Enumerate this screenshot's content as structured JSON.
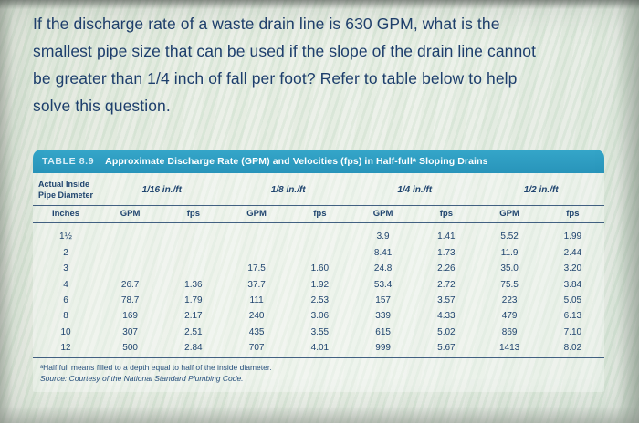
{
  "colors": {
    "header_bar_teal": "#2b9cc1",
    "question_text_navy": "#1d3e6c",
    "table_text_navy": "#20456f",
    "background_tint": "#e8ede4"
  },
  "question": {
    "lines": [
      "If the discharge rate of a waste drain line is 630 GPM, what is the",
      "smallest pipe size that can be used if the slope of the drain line cannot",
      "be greater than 1/4 inch of fall per foot? Refer to table below to help",
      "solve this question."
    ]
  },
  "table": {
    "label": "TABLE 8.9",
    "title": "Approximate Discharge Rate (GPM) and Velocities (fps) in Half-fullᵃ Sloping Drains",
    "corner_header": "Actual Inside\nPipe Diameter",
    "slope_headers": [
      "1/16 in./ft",
      "1/8 in./ft",
      "1/4 in./ft",
      "1/2 in./ft"
    ],
    "sub_headers": [
      "Inches",
      "GPM",
      "fps",
      "GPM",
      "fps",
      "GPM",
      "fps",
      "GPM",
      "fps"
    ],
    "rows": [
      [
        "1½",
        "",
        "",
        "",
        "",
        "3.9",
        "1.41",
        "5.52",
        "1.99"
      ],
      [
        "2",
        "",
        "",
        "",
        "",
        "8.41",
        "1.73",
        "11.9",
        "2.44"
      ],
      [
        "3",
        "",
        "",
        "17.5",
        "1.60",
        "24.8",
        "2.26",
        "35.0",
        "3.20"
      ],
      [
        "4",
        "26.7",
        "1.36",
        "37.7",
        "1.92",
        "53.4",
        "2.72",
        "75.5",
        "3.84"
      ],
      [
        "6",
        "78.7",
        "1.79",
        "111",
        "2.53",
        "157",
        "3.57",
        "223",
        "5.05"
      ],
      [
        "8",
        "169",
        "2.17",
        "240",
        "3.06",
        "339",
        "4.33",
        "479",
        "6.13"
      ],
      [
        "10",
        "307",
        "2.51",
        "435",
        "3.55",
        "615",
        "5.02",
        "869",
        "7.10"
      ],
      [
        "12",
        "500",
        "2.84",
        "707",
        "4.01",
        "999",
        "5.67",
        "1413",
        "8.02"
      ]
    ],
    "footnotes": [
      "ᵃHalf full means filled to a depth equal to half of the inside diameter.",
      "Source: Courtesy of the National Standard Plumbing Code."
    ]
  }
}
